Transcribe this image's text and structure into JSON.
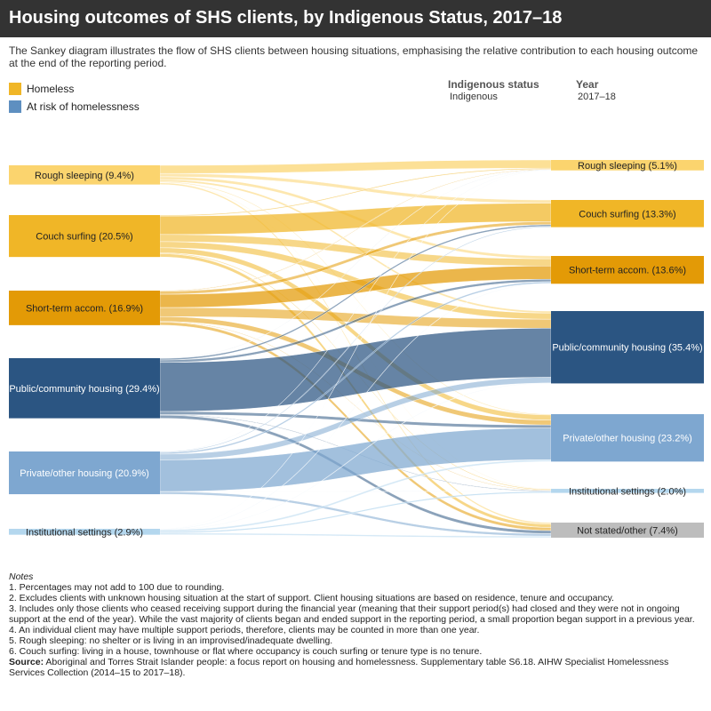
{
  "header": {
    "title": "Housing outcomes of SHS clients, by Indigenous Status, 2017–18",
    "subtitle": "The Sankey diagram illustrates the flow of SHS clients between housing situations, emphasising the relative contribution to each housing outcome at the end of the reporting period."
  },
  "legend": {
    "items": [
      {
        "label": "Homeless",
        "color": "#F0B627"
      },
      {
        "label": "At risk of homelessness",
        "color": "#5E8FC0"
      }
    ]
  },
  "filters": {
    "indigenous_status": {
      "label": "Indigenous status",
      "value": "Indigenous"
    },
    "year": {
      "label": "Year",
      "value": "2017–18"
    }
  },
  "diagram": {
    "source_nodes": [
      {
        "id": "rs",
        "label": "Rough sleeping (9.4%)",
        "color": "#FBD46E",
        "text_color": "#222222"
      },
      {
        "id": "cs",
        "label": "Couch surfing (20.5%)",
        "color": "#F0B627",
        "text_color": "#222222"
      },
      {
        "id": "st",
        "label": "Short-term accom. (16.9%)",
        "color": "#E39A06",
        "text_color": "#222222"
      },
      {
        "id": "pc",
        "label": "Public/community housing (29.4%)",
        "color": "#2B5582",
        "text_color": "#FFFFFF"
      },
      {
        "id": "po",
        "label": "Private/other housing (20.9%)",
        "color": "#7EA7D0",
        "text_color": "#FFFFFF"
      },
      {
        "id": "is",
        "label": "Institutional settings (2.9%)",
        "color": "#B4D7EE",
        "text_color": "#222222"
      }
    ],
    "target_nodes": [
      {
        "id": "rs",
        "label": "Rough sleeping (5.1%)",
        "color": "#FBD46E",
        "text_color": "#222222"
      },
      {
        "id": "cs",
        "label": "Couch surfing (13.3%)",
        "color": "#F0B627",
        "text_color": "#222222"
      },
      {
        "id": "st",
        "label": "Short-term accom. (13.6%)",
        "color": "#E39A06",
        "text_color": "#222222"
      },
      {
        "id": "pc",
        "label": "Public/community housing (35.4%)",
        "color": "#2B5582",
        "text_color": "#FFFFFF"
      },
      {
        "id": "po",
        "label": "Private/other housing (23.2%)",
        "color": "#7EA7D0",
        "text_color": "#FFFFFF"
      },
      {
        "id": "is",
        "label": "Institutional settings (2.0%)",
        "color": "#B4D7EE",
        "text_color": "#222222"
      },
      {
        "id": "ns",
        "label": "Not stated/other (7.4%)",
        "color": "#BDBDBD",
        "text_color": "#222222"
      }
    ],
    "flows": [
      {
        "source": "rs",
        "target": "rs",
        "value": 4.0
      },
      {
        "source": "rs",
        "target": "cs",
        "value": 1.6
      },
      {
        "source": "rs",
        "target": "st",
        "value": 1.4
      },
      {
        "source": "rs",
        "target": "pc",
        "value": 1.0
      },
      {
        "source": "rs",
        "target": "po",
        "value": 0.4
      },
      {
        "source": "rs",
        "target": "is",
        "value": 0.2
      },
      {
        "source": "rs",
        "target": "ns",
        "value": 0.8
      },
      {
        "source": "cs",
        "target": "rs",
        "value": 0.5
      },
      {
        "source": "cs",
        "target": "cs",
        "value": 9.0
      },
      {
        "source": "cs",
        "target": "st",
        "value": 3.5
      },
      {
        "source": "cs",
        "target": "pc",
        "value": 3.0
      },
      {
        "source": "cs",
        "target": "po",
        "value": 2.5
      },
      {
        "source": "cs",
        "target": "is",
        "value": 0.4
      },
      {
        "source": "cs",
        "target": "ns",
        "value": 1.6
      },
      {
        "source": "st",
        "target": "rs",
        "value": 0.3
      },
      {
        "source": "st",
        "target": "cs",
        "value": 1.5
      },
      {
        "source": "st",
        "target": "st",
        "value": 6.5
      },
      {
        "source": "st",
        "target": "pc",
        "value": 4.4
      },
      {
        "source": "st",
        "target": "po",
        "value": 2.4
      },
      {
        "source": "st",
        "target": "is",
        "value": 0.3
      },
      {
        "source": "st",
        "target": "ns",
        "value": 1.5
      },
      {
        "source": "pc",
        "target": "rs",
        "value": 0.1
      },
      {
        "source": "pc",
        "target": "cs",
        "value": 0.8
      },
      {
        "source": "pc",
        "target": "st",
        "value": 1.2
      },
      {
        "source": "pc",
        "target": "pc",
        "value": 24.0
      },
      {
        "source": "pc",
        "target": "po",
        "value": 1.5
      },
      {
        "source": "pc",
        "target": "is",
        "value": 0.3
      },
      {
        "source": "pc",
        "target": "ns",
        "value": 1.5
      },
      {
        "source": "po",
        "target": "rs",
        "value": 0.1
      },
      {
        "source": "po",
        "target": "cs",
        "value": 0.4
      },
      {
        "source": "po",
        "target": "st",
        "value": 0.8
      },
      {
        "source": "po",
        "target": "pc",
        "value": 2.8
      },
      {
        "source": "po",
        "target": "po",
        "value": 15.5
      },
      {
        "source": "po",
        "target": "is",
        "value": 0.1
      },
      {
        "source": "po",
        "target": "ns",
        "value": 1.2
      },
      {
        "source": "is",
        "target": "rs",
        "value": 0.1
      },
      {
        "source": "is",
        "target": "st",
        "value": 0.2
      },
      {
        "source": "is",
        "target": "pc",
        "value": 0.2
      },
      {
        "source": "is",
        "target": "po",
        "value": 0.9
      },
      {
        "source": "is",
        "target": "is",
        "value": 0.7
      },
      {
        "source": "is",
        "target": "ns",
        "value": 0.8
      }
    ]
  },
  "notes": {
    "heading": "Notes",
    "items": [
      "1.   Percentages may not add to 100 due to rounding.",
      "2.   Excludes clients with unknown housing situation at the start of support. Client housing situations are based on residence, tenure and occupancy.",
      "3.   Includes only those clients who ceased receiving support during the financial year (meaning that their support period(s) had closed and they were not in ongoing support at the end of the year). While the vast majority of clients began and ended support in the reporting period, a small proportion began support in a previous year.",
      "4.   An individual client may have multiple support periods, therefore, clients may be counted in more than one year.",
      "5.   Rough sleeping: no shelter or is living in an improvised/inadequate dwelling.",
      "6.   Couch surfing: living in a house, townhouse or flat where occupancy is couch surfing or tenure type is no tenure."
    ],
    "source_label": "Source:",
    "source_text": " Aboriginal and Torres Strait Islander people: a focus report on housing and homelessness. Supplementary table S6.18. AIHW Specialist Homelessness Services Collection (2014–15 to 2017–18)."
  }
}
